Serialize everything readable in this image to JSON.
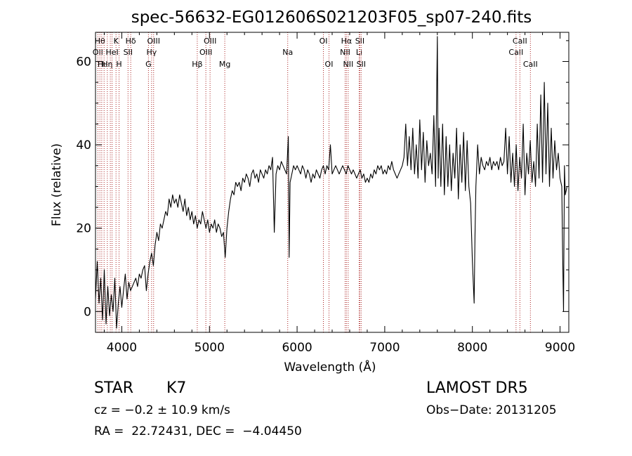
{
  "chart_data": {
    "type": "line",
    "title": "spec-56632-EG012606S021203F05_sp07-240.fits",
    "xlabel": "Wavelength (Å)",
    "ylabel": "Flux (relative)",
    "xlim": [
      3700,
      9100
    ],
    "ylim": [
      -5,
      67
    ],
    "xticks": [
      4000,
      5000,
      6000,
      7000,
      8000,
      9000
    ],
    "yticks": [
      0,
      20,
      40,
      60
    ],
    "xtick_labels": [
      "4000",
      "5000",
      "6000",
      "7000",
      "8000",
      "9000"
    ],
    "ytick_labels": [
      "0",
      "20",
      "40",
      "60"
    ],
    "grid": false,
    "line_color": "#000000",
    "marker_color": "#aa2222",
    "series": [
      {
        "points": [
          [
            3700,
            3
          ],
          [
            3720,
            12
          ],
          [
            3740,
            2
          ],
          [
            3760,
            8
          ],
          [
            3780,
            -2
          ],
          [
            3800,
            10
          ],
          [
            3820,
            -3
          ],
          [
            3840,
            6
          ],
          [
            3860,
            -1
          ],
          [
            3880,
            4
          ],
          [
            3900,
            0
          ],
          [
            3920,
            8
          ],
          [
            3940,
            -4
          ],
          [
            3960,
            2
          ],
          [
            3980,
            6
          ],
          [
            4000,
            1
          ],
          [
            4020,
            5
          ],
          [
            4040,
            9
          ],
          [
            4060,
            3
          ],
          [
            4080,
            7
          ],
          [
            4100,
            5
          ],
          [
            4120,
            6
          ],
          [
            4140,
            7
          ],
          [
            4160,
            8
          ],
          [
            4180,
            6
          ],
          [
            4200,
            9
          ],
          [
            4220,
            8
          ],
          [
            4240,
            10
          ],
          [
            4260,
            11
          ],
          [
            4280,
            5
          ],
          [
            4300,
            9
          ],
          [
            4320,
            12
          ],
          [
            4340,
            14
          ],
          [
            4360,
            11
          ],
          [
            4380,
            16
          ],
          [
            4400,
            19
          ],
          [
            4420,
            17
          ],
          [
            4440,
            21
          ],
          [
            4460,
            20
          ],
          [
            4480,
            22
          ],
          [
            4500,
            24
          ],
          [
            4520,
            23
          ],
          [
            4540,
            27
          ],
          [
            4560,
            25
          ],
          [
            4580,
            28
          ],
          [
            4600,
            26
          ],
          [
            4620,
            27
          ],
          [
            4640,
            25
          ],
          [
            4660,
            28
          ],
          [
            4680,
            26
          ],
          [
            4700,
            24
          ],
          [
            4720,
            27
          ],
          [
            4740,
            23
          ],
          [
            4760,
            25
          ],
          [
            4780,
            22
          ],
          [
            4800,
            24
          ],
          [
            4820,
            21
          ],
          [
            4840,
            23
          ],
          [
            4860,
            20
          ],
          [
            4880,
            22
          ],
          [
            4900,
            21
          ],
          [
            4920,
            24
          ],
          [
            4940,
            22
          ],
          [
            4960,
            20
          ],
          [
            4980,
            22
          ],
          [
            5000,
            19
          ],
          [
            5020,
            21
          ],
          [
            5040,
            20
          ],
          [
            5060,
            22
          ],
          [
            5080,
            19
          ],
          [
            5100,
            21
          ],
          [
            5120,
            20
          ],
          [
            5140,
            18
          ],
          [
            5160,
            19
          ],
          [
            5180,
            13
          ],
          [
            5200,
            20
          ],
          [
            5220,
            24
          ],
          [
            5240,
            27
          ],
          [
            5260,
            29
          ],
          [
            5280,
            28
          ],
          [
            5300,
            31
          ],
          [
            5320,
            30
          ],
          [
            5340,
            31
          ],
          [
            5360,
            29
          ],
          [
            5380,
            32
          ],
          [
            5400,
            31
          ],
          [
            5420,
            33
          ],
          [
            5440,
            32
          ],
          [
            5460,
            30
          ],
          [
            5480,
            33
          ],
          [
            5500,
            34
          ],
          [
            5520,
            32
          ],
          [
            5540,
            33
          ],
          [
            5560,
            31
          ],
          [
            5580,
            34
          ],
          [
            5600,
            33
          ],
          [
            5620,
            32
          ],
          [
            5640,
            34
          ],
          [
            5660,
            33
          ],
          [
            5680,
            35
          ],
          [
            5700,
            34
          ],
          [
            5720,
            37
          ],
          [
            5740,
            19
          ],
          [
            5760,
            33
          ],
          [
            5780,
            35
          ],
          [
            5800,
            34
          ],
          [
            5820,
            36
          ],
          [
            5840,
            35
          ],
          [
            5860,
            34
          ],
          [
            5880,
            33
          ],
          [
            5900,
            42
          ],
          [
            5910,
            13
          ],
          [
            5920,
            31
          ],
          [
            5940,
            33
          ],
          [
            5960,
            35
          ],
          [
            5980,
            34
          ],
          [
            6000,
            35
          ],
          [
            6020,
            34
          ],
          [
            6040,
            33
          ],
          [
            6060,
            35
          ],
          [
            6080,
            34
          ],
          [
            6100,
            32
          ],
          [
            6120,
            34
          ],
          [
            6140,
            33
          ],
          [
            6160,
            31
          ],
          [
            6180,
            33
          ],
          [
            6200,
            32
          ],
          [
            6220,
            34
          ],
          [
            6240,
            33
          ],
          [
            6260,
            32
          ],
          [
            6280,
            34
          ],
          [
            6300,
            35
          ],
          [
            6320,
            33
          ],
          [
            6340,
            35
          ],
          [
            6360,
            34
          ],
          [
            6380,
            40
          ],
          [
            6400,
            33
          ],
          [
            6420,
            34
          ],
          [
            6440,
            35
          ],
          [
            6460,
            34
          ],
          [
            6480,
            33
          ],
          [
            6500,
            34
          ],
          [
            6520,
            35
          ],
          [
            6540,
            34
          ],
          [
            6560,
            33
          ],
          [
            6580,
            35
          ],
          [
            6600,
            34
          ],
          [
            6620,
            33
          ],
          [
            6640,
            34
          ],
          [
            6660,
            33
          ],
          [
            6680,
            32
          ],
          [
            6700,
            33
          ],
          [
            6720,
            34
          ],
          [
            6740,
            32
          ],
          [
            6760,
            33
          ],
          [
            6780,
            31
          ],
          [
            6800,
            32
          ],
          [
            6820,
            31
          ],
          [
            6840,
            33
          ],
          [
            6860,
            32
          ],
          [
            6880,
            34
          ],
          [
            6900,
            33
          ],
          [
            6920,
            35
          ],
          [
            6940,
            34
          ],
          [
            6960,
            35
          ],
          [
            6980,
            33
          ],
          [
            7000,
            34
          ],
          [
            7020,
            33
          ],
          [
            7040,
            35
          ],
          [
            7060,
            34
          ],
          [
            7080,
            36
          ],
          [
            7100,
            34
          ],
          [
            7120,
            33
          ],
          [
            7140,
            32
          ],
          [
            7160,
            33
          ],
          [
            7180,
            34
          ],
          [
            7200,
            35
          ],
          [
            7220,
            37
          ],
          [
            7240,
            45
          ],
          [
            7260,
            35
          ],
          [
            7280,
            42
          ],
          [
            7300,
            34
          ],
          [
            7320,
            44
          ],
          [
            7340,
            33
          ],
          [
            7360,
            40
          ],
          [
            7380,
            32
          ],
          [
            7400,
            46
          ],
          [
            7420,
            34
          ],
          [
            7440,
            43
          ],
          [
            7460,
            31
          ],
          [
            7480,
            41
          ],
          [
            7500,
            35
          ],
          [
            7520,
            38
          ],
          [
            7540,
            33
          ],
          [
            7560,
            47
          ],
          [
            7580,
            30
          ],
          [
            7600,
            66
          ],
          [
            7610,
            32
          ],
          [
            7620,
            44
          ],
          [
            7640,
            30
          ],
          [
            7660,
            45
          ],
          [
            7680,
            28
          ],
          [
            7700,
            42
          ],
          [
            7720,
            30
          ],
          [
            7740,
            40
          ],
          [
            7760,
            29
          ],
          [
            7780,
            38
          ],
          [
            7800,
            32
          ],
          [
            7820,
            44
          ],
          [
            7840,
            27
          ],
          [
            7860,
            40
          ],
          [
            7880,
            31
          ],
          [
            7900,
            43
          ],
          [
            7920,
            29
          ],
          [
            7940,
            41
          ],
          [
            7960,
            30
          ],
          [
            7980,
            26
          ],
          [
            8000,
            12
          ],
          [
            8020,
            2
          ],
          [
            8030,
            18
          ],
          [
            8040,
            30
          ],
          [
            8060,
            40
          ],
          [
            8080,
            33
          ],
          [
            8100,
            37
          ],
          [
            8120,
            35
          ],
          [
            8140,
            34
          ],
          [
            8160,
            36
          ],
          [
            8180,
            35
          ],
          [
            8200,
            37
          ],
          [
            8220,
            34
          ],
          [
            8240,
            36
          ],
          [
            8260,
            35
          ],
          [
            8280,
            36
          ],
          [
            8300,
            34
          ],
          [
            8320,
            37
          ],
          [
            8340,
            35
          ],
          [
            8360,
            36
          ],
          [
            8380,
            44
          ],
          [
            8400,
            33
          ],
          [
            8420,
            42
          ],
          [
            8440,
            31
          ],
          [
            8460,
            38
          ],
          [
            8480,
            30
          ],
          [
            8500,
            40
          ],
          [
            8520,
            29
          ],
          [
            8540,
            37
          ],
          [
            8560,
            32
          ],
          [
            8580,
            45
          ],
          [
            8600,
            28
          ],
          [
            8620,
            38
          ],
          [
            8640,
            33
          ],
          [
            8660,
            41
          ],
          [
            8680,
            31
          ],
          [
            8700,
            36
          ],
          [
            8720,
            30
          ],
          [
            8740,
            45
          ],
          [
            8760,
            32
          ],
          [
            8780,
            52
          ],
          [
            8800,
            31
          ],
          [
            8820,
            55
          ],
          [
            8840,
            33
          ],
          [
            8860,
            50
          ],
          [
            8880,
            30
          ],
          [
            8900,
            44
          ],
          [
            8920,
            32
          ],
          [
            8940,
            41
          ],
          [
            8960,
            34
          ],
          [
            8980,
            38
          ],
          [
            9000,
            32
          ],
          [
            9020,
            30
          ],
          [
            9030,
            13
          ],
          [
            9040,
            0
          ],
          [
            9050,
            35
          ],
          [
            9060,
            28
          ],
          [
            9080,
            30
          ]
        ]
      }
    ],
    "line_markers": [
      {
        "wavelength": 3727,
        "label": "OII",
        "row": 2
      },
      {
        "wavelength": 3750,
        "label": "Hθ",
        "row": 1
      },
      {
        "wavelength": 3771,
        "label": "Hι",
        "row": 3
      },
      {
        "wavelength": 3798,
        "label": "",
        "row": 0
      },
      {
        "wavelength": 3835,
        "label": "Hη",
        "row": 3
      },
      {
        "wavelength": 3869,
        "label": "",
        "row": 0
      },
      {
        "wavelength": 3889,
        "label": "HeI",
        "row": 2
      },
      {
        "wavelength": 3934,
        "label": "K",
        "row": 1
      },
      {
        "wavelength": 3969,
        "label": "H",
        "row": 3
      },
      {
        "wavelength": 4071,
        "label": "SII",
        "row": 2
      },
      {
        "wavelength": 4102,
        "label": "Hδ",
        "row": 1
      },
      {
        "wavelength": 4304,
        "label": "G",
        "row": 3
      },
      {
        "wavelength": 4340,
        "label": "Hγ",
        "row": 2
      },
      {
        "wavelength": 4363,
        "label": "OIII",
        "row": 1
      },
      {
        "wavelength": 4861,
        "label": "Hβ",
        "row": 3
      },
      {
        "wavelength": 4959,
        "label": "OIII",
        "row": 2
      },
      {
        "wavelength": 5007,
        "label": "OIII",
        "row": 1
      },
      {
        "wavelength": 5175,
        "label": "Mg",
        "row": 3
      },
      {
        "wavelength": 5893,
        "label": "Na",
        "row": 2
      },
      {
        "wavelength": 6300,
        "label": "OI",
        "row": 1
      },
      {
        "wavelength": 6364,
        "label": "OI",
        "row": 3
      },
      {
        "wavelength": 6548,
        "label": "NII",
        "row": 2
      },
      {
        "wavelength": 6563,
        "label": "Hα",
        "row": 1
      },
      {
        "wavelength": 6583,
        "label": "NII",
        "row": 3
      },
      {
        "wavelength": 6708,
        "label": "Li",
        "row": 2
      },
      {
        "wavelength": 6716,
        "label": "SII",
        "row": 1
      },
      {
        "wavelength": 6731,
        "label": "SII",
        "row": 3
      },
      {
        "wavelength": 8498,
        "label": "CaII",
        "row": 2
      },
      {
        "wavelength": 8542,
        "label": "CaII",
        "row": 1
      },
      {
        "wavelength": 8662,
        "label": "CaII",
        "row": 3
      }
    ]
  },
  "info": {
    "class": "STAR",
    "subclass": "K7",
    "survey": "LAMOST DR5",
    "cz": "cz = −0.2 ± 10.9 km/s",
    "obs_date": "Obs−Date: 20131205",
    "radec": "RA =  22.72431, DEC =  −4.04450"
  }
}
